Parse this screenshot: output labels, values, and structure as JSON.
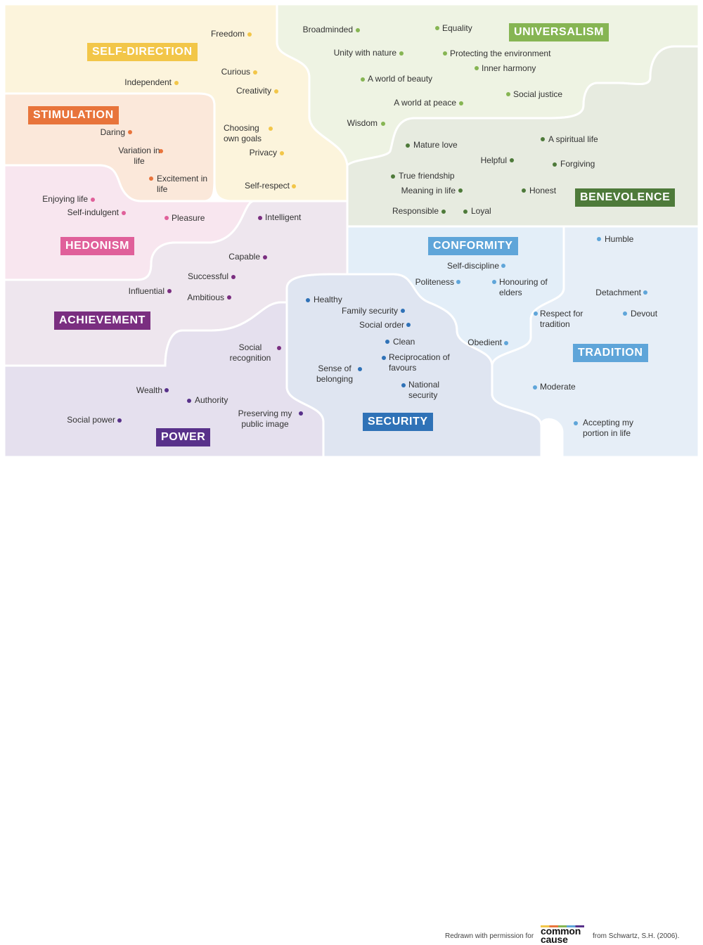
{
  "values": [
    {
      "id": "self-direction",
      "label": "SELF-DIRECTION",
      "color": "#f2c649",
      "fill": "#fcf4dc",
      "items": [
        "Freedom",
        "Curious",
        "Creativity",
        "Independent",
        "Choosing own goals",
        "Privacy",
        "Self-respect"
      ]
    },
    {
      "id": "universalism",
      "label": "UNIVERSALISM",
      "color": "#86b553",
      "fill": "#eef3e3",
      "items": [
        "Broadminded",
        "Equality",
        "Unity with nature",
        "Protecting the environment",
        "Inner harmony",
        "A world of beauty",
        "Social justice",
        "A world at peace",
        "Wisdom"
      ]
    },
    {
      "id": "stimulation",
      "label": "STIMULATION",
      "color": "#e8743b",
      "fill": "#fbe8da",
      "items": [
        "Daring",
        "Variation in life",
        "Excitement in life"
      ]
    },
    {
      "id": "benevolence",
      "label": "BENEVOLENCE",
      "color": "#4e7a3a",
      "fill": "#e7ebe0",
      "items": [
        "Mature love",
        "A spiritual life",
        "Helpful",
        "Forgiving",
        "True friendship",
        "Meaning in life",
        "Honest",
        "Responsible",
        "Loyal"
      ]
    },
    {
      "id": "hedonism",
      "label": "HEDONISM",
      "color": "#e0609a",
      "fill": "#f8e6ef",
      "items": [
        "Enjoying life",
        "Self-indulgent",
        "Pleasure"
      ]
    },
    {
      "id": "achievement",
      "label": "ACHIEVEMENT",
      "color": "#7a2e80",
      "fill": "#eee6ee",
      "items": [
        "Intelligent",
        "Capable",
        "Successful",
        "Influential",
        "Ambitious",
        "Social recognition"
      ]
    },
    {
      "id": "conformity",
      "label": "CONFORMITY",
      "color": "#5fa5d9",
      "fill": "#e3eef8",
      "items": [
        "Self-discipline",
        "Politeness",
        "Honouring of elders",
        "Obedient"
      ]
    },
    {
      "id": "tradition",
      "label": "TRADITION",
      "color": "#5fa5d9",
      "fill": "#e6eef7",
      "items": [
        "Humble",
        "Detachment",
        "Respect for tradition",
        "Devout",
        "Moderate",
        "Accepting my portion in life"
      ]
    },
    {
      "id": "security",
      "label": "SECURITY",
      "color": "#2f72b7",
      "fill": "#dfe5f1",
      "items": [
        "Healthy",
        "Family security",
        "Social order",
        "Clean",
        "Reciprocation of favours",
        "Sense of belonging",
        "National security"
      ]
    },
    {
      "id": "power",
      "label": "POWER",
      "color": "#58318a",
      "fill": "#e5e0ee",
      "items": [
        "Wealth",
        "Authority",
        "Social power",
        "Preserving my public image"
      ]
    }
  ],
  "credit": {
    "prefix": "Redrawn with permission for",
    "logo_line1": "common",
    "logo_line2": "cause",
    "source": "from Schwartz, S.H. (2006)."
  }
}
